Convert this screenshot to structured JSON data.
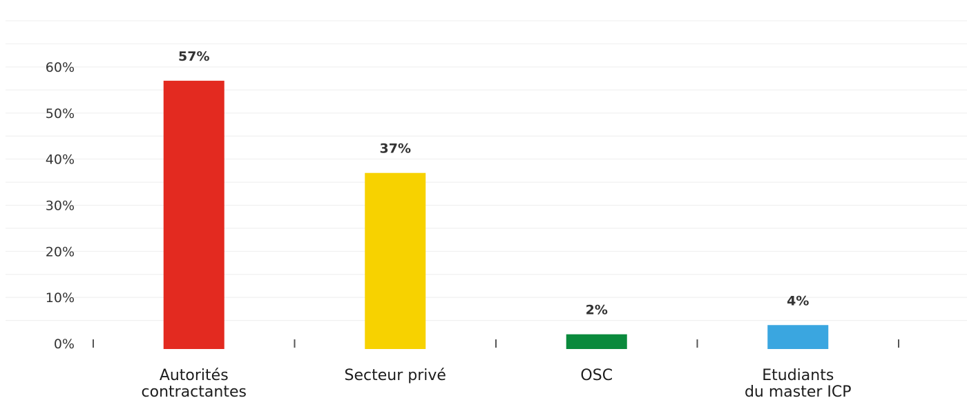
{
  "chart_data": {
    "type": "bar",
    "categories": [
      [
        "Autorités",
        "contractantes"
      ],
      [
        "Secteur privé"
      ],
      [
        "OSC"
      ],
      [
        "Etudiants",
        "du master ICP"
      ]
    ],
    "values": [
      57,
      37,
      2,
      4
    ],
    "data_labels": [
      "57%",
      "37%",
      "2%",
      "4%"
    ],
    "colors": [
      "#e32a20",
      "#f7d200",
      "#0a8a3c",
      "#3aa6e0"
    ],
    "yticks": [
      "0%",
      "10%",
      "20%",
      "30%",
      "40%",
      "50%",
      "60%"
    ],
    "ylim": [
      0,
      60
    ],
    "grid": true,
    "title": "",
    "xlabel": "",
    "ylabel": ""
  }
}
